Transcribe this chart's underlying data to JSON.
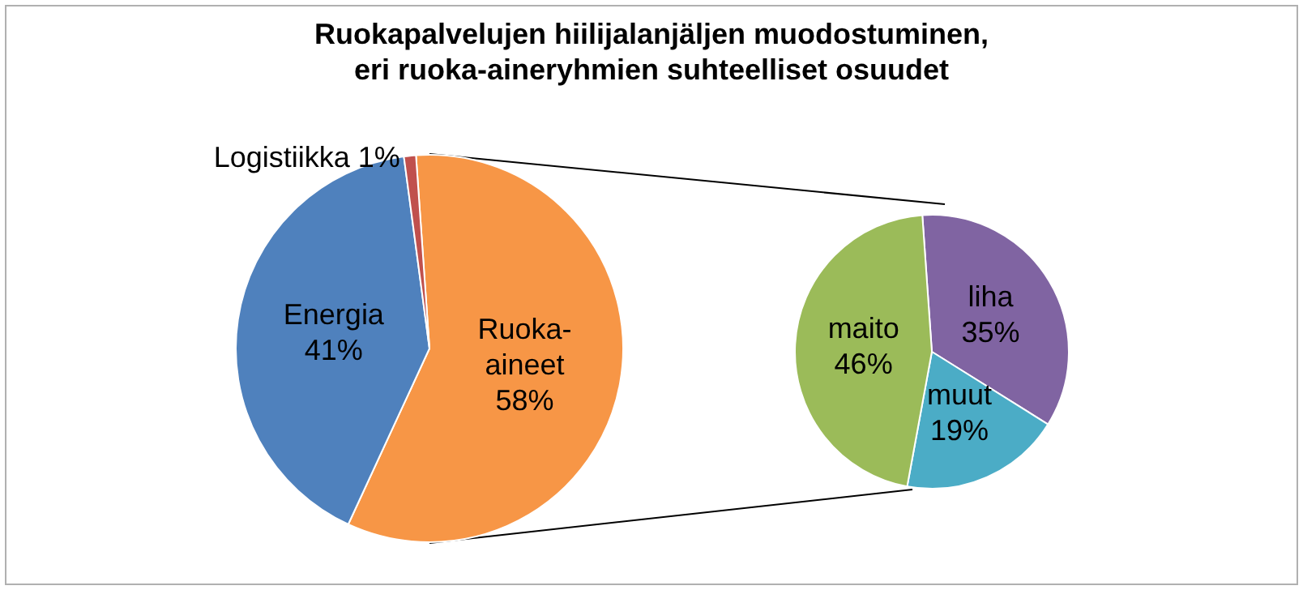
{
  "chart_data": [
    {
      "type": "pie",
      "title": "Ruokapalvelujen hiilijalanjäljen muodostuminen,\neri ruoka-aineryhmien suhteelliset osuudet",
      "categories": [
        "Ruoka-aineet",
        "Energia",
        "Logistiikka"
      ],
      "values": [
        58,
        41,
        1
      ],
      "colors": [
        "#f79646",
        "#4f81bd",
        "#c0504d"
      ],
      "value_labels": [
        "58%",
        "41%",
        "1%"
      ]
    },
    {
      "type": "pie",
      "categories": [
        "liha",
        "muut",
        "maito"
      ],
      "values": [
        35,
        19,
        46
      ],
      "colors": [
        "#8064a2",
        "#4bacc6",
        "#9bbb59"
      ],
      "value_labels": [
        "35%",
        "19%",
        "46%"
      ]
    }
  ]
}
